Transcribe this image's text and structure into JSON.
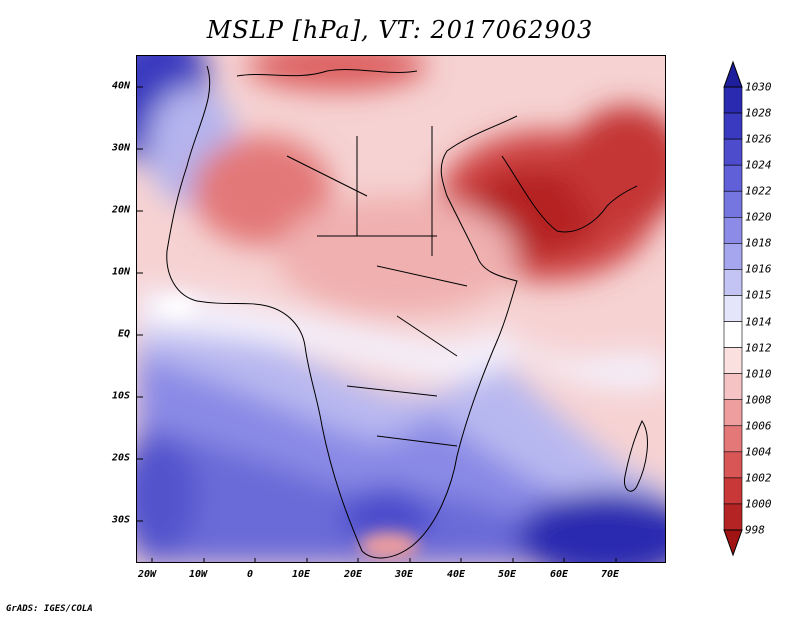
{
  "title": "MSLP [hPa], VT: 2017062903",
  "credit": "GrADS: IGES/COLA",
  "map": {
    "lon_range": [
      -23,
      80
    ],
    "lat_range": [
      -37,
      45
    ],
    "lat_labels": [
      "40N",
      "30N",
      "20N",
      "10N",
      "EQ",
      "10S",
      "20S",
      "30S"
    ],
    "lat_values": [
      40,
      30,
      20,
      10,
      0,
      -10,
      -20,
      -30
    ],
    "lon_labels": [
      "20W",
      "10W",
      "0",
      "10E",
      "20E",
      "30E",
      "40E",
      "50E",
      "60E",
      "70E"
    ],
    "lon_values": [
      -20,
      -10,
      0,
      10,
      20,
      30,
      40,
      50,
      60,
      70
    ]
  },
  "colorbar": {
    "labels": [
      "1030",
      "1028",
      "1026",
      "1024",
      "1022",
      "1020",
      "1018",
      "1016",
      "1015",
      "1014",
      "1012",
      "1010",
      "1008",
      "1006",
      "1004",
      "1002",
      "1000",
      "998"
    ],
    "colors": [
      "#1e1e9c",
      "#2a2ab0",
      "#3a3ac0",
      "#4c4ccc",
      "#6060d8",
      "#7676e0",
      "#8c8ce8",
      "#a6a6ee",
      "#c4c4f4",
      "#e4e4fa",
      "#ffffff",
      "#fbe0e0",
      "#f5c3c3",
      "#ee9e9e",
      "#e47878",
      "#d85656",
      "#c83838",
      "#b52424",
      "#a01414"
    ]
  }
}
